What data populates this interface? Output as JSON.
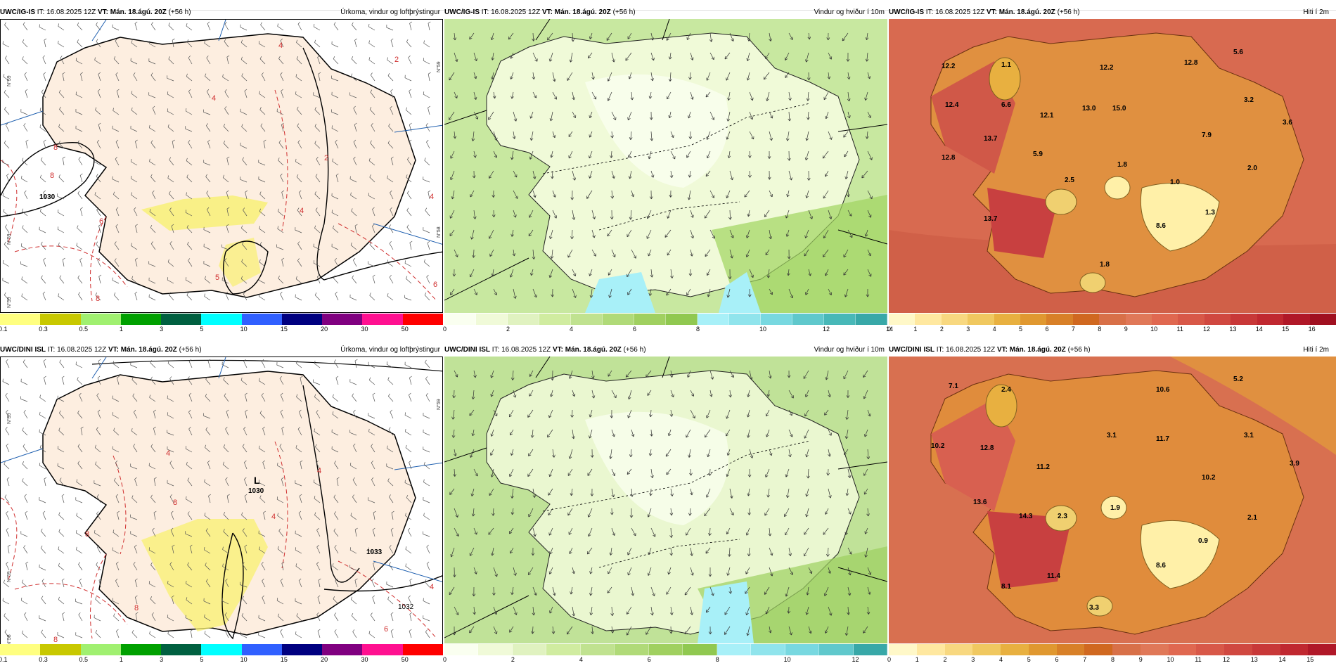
{
  "rows": [
    {
      "model": "UWC/IG-IS",
      "it_label": "IT: 16.08.2025 12Z",
      "vt_label": "VT: Mán. 18.ágú. 20Z",
      "lead": "(+56 h)",
      "panels": [
        {
          "kind": "precip",
          "title": "Úrkoma, vindur og loftþrýstingur",
          "pressure_labels": [
            "1030"
          ],
          "contour_labels": [
            "4",
            "2",
            "4",
            "6",
            "8",
            "8",
            "2",
            "4",
            "4",
            "6",
            "8",
            "5"
          ],
          "grid_labels": [
            "N°59",
            "N°59",
            "N°59",
            "N°58",
            "N°59"
          ]
        },
        {
          "kind": "wind",
          "title": "Vindur og hviður í 10m"
        },
        {
          "kind": "temp",
          "title": "Hiti í 2m",
          "values": [
            "12.2",
            "1.1",
            "12.2",
            "12.8",
            "5.6",
            "12.4",
            "6.6",
            "12.1",
            "13.0",
            "15.0",
            "3.2",
            "3.6",
            "12.8",
            "13.7",
            "5.9",
            "7.9",
            "1.8",
            "2.0",
            "2.5",
            "1.0",
            "13.7",
            "8.6",
            "1.3",
            "1.8"
          ]
        }
      ],
      "colorbars": {
        "precip": [
          "0.1",
          "0.3",
          "0.5",
          "1",
          "3",
          "5",
          "10",
          "15",
          "20",
          "30",
          "50"
        ],
        "wind": [
          "0",
          "2",
          "4",
          "6",
          "8",
          "10",
          "12",
          "14"
        ],
        "temp": [
          "0",
          "1",
          "2",
          "3",
          "4",
          "5",
          "6",
          "7",
          "8",
          "9",
          "10",
          "11",
          "12",
          "13",
          "14",
          "15",
          "16"
        ]
      }
    },
    {
      "model": "UWC/DINI ISL",
      "it_label": "IT: 16.08.2025 12Z",
      "vt_label": "VT: Mán. 18.ágú. 20Z",
      "lead": "(+56 h)",
      "panels": [
        {
          "kind": "precip",
          "title": "Úrkoma, vindur og loftþrýstingur",
          "pressure_labels": [
            "L",
            "1030",
            "1033",
            "1032"
          ],
          "contour_labels": [
            "4",
            "8",
            "8",
            "8",
            "4",
            "6",
            "8",
            "4",
            "4"
          ],
          "grid_labels": [
            "N°59",
            "N°59",
            "N°59",
            "N°58"
          ]
        },
        {
          "kind": "wind",
          "title": "Vindur og hviður í 10m"
        },
        {
          "kind": "temp",
          "title": "Hiti í 2m",
          "values": [
            "7.1",
            "2.4",
            "10.6",
            "5.2",
            "10.2",
            "12.8",
            "3.1",
            "11.7",
            "3.1",
            "11.2",
            "3.9",
            "10.2",
            "13.6",
            "14.3",
            "2.3",
            "1.9",
            "2.1",
            "0.9",
            "11.4",
            "8.6",
            "8.1",
            "3.3"
          ]
        }
      ],
      "colorbars": {
        "precip": [
          "0.1",
          "0.3",
          "0.5",
          "1",
          "3",
          "5",
          "10",
          "15",
          "20",
          "30",
          "50"
        ],
        "wind": [
          "0",
          "2",
          "4",
          "6",
          "8",
          "10",
          "12"
        ],
        "temp": [
          "0",
          "1",
          "2",
          "3",
          "4",
          "5",
          "6",
          "7",
          "8",
          "9",
          "10",
          "11",
          "12",
          "13",
          "14",
          "15"
        ]
      }
    }
  ],
  "colors": {
    "precip_scale": [
      "#ffff80",
      "#c8c800",
      "#a0f070",
      "#00a000",
      "#006040",
      "#00ffff",
      "#3060ff",
      "#000080",
      "#800080",
      "#ff1090",
      "#ff0000"
    ],
    "wind_scale": [
      "#fafff0",
      "#e8f8c8",
      "#d0eca0",
      "#b8e080",
      "#a0d460",
      "#88c84c",
      "#a8f0f8",
      "#80dce8",
      "#58c8d0",
      "#38b0b0"
    ],
    "temp_scale": [
      "#fff8c8",
      "#ffe8a0",
      "#f8d880",
      "#f0c860",
      "#e8b040",
      "#e09830",
      "#d88028",
      "#d06820",
      "#d87048",
      "#e07858",
      "#e06850",
      "#d85848",
      "#d04840",
      "#c83838",
      "#c02830",
      "#b01828",
      "#a01020"
    ],
    "land": "#fdeee0"
  }
}
